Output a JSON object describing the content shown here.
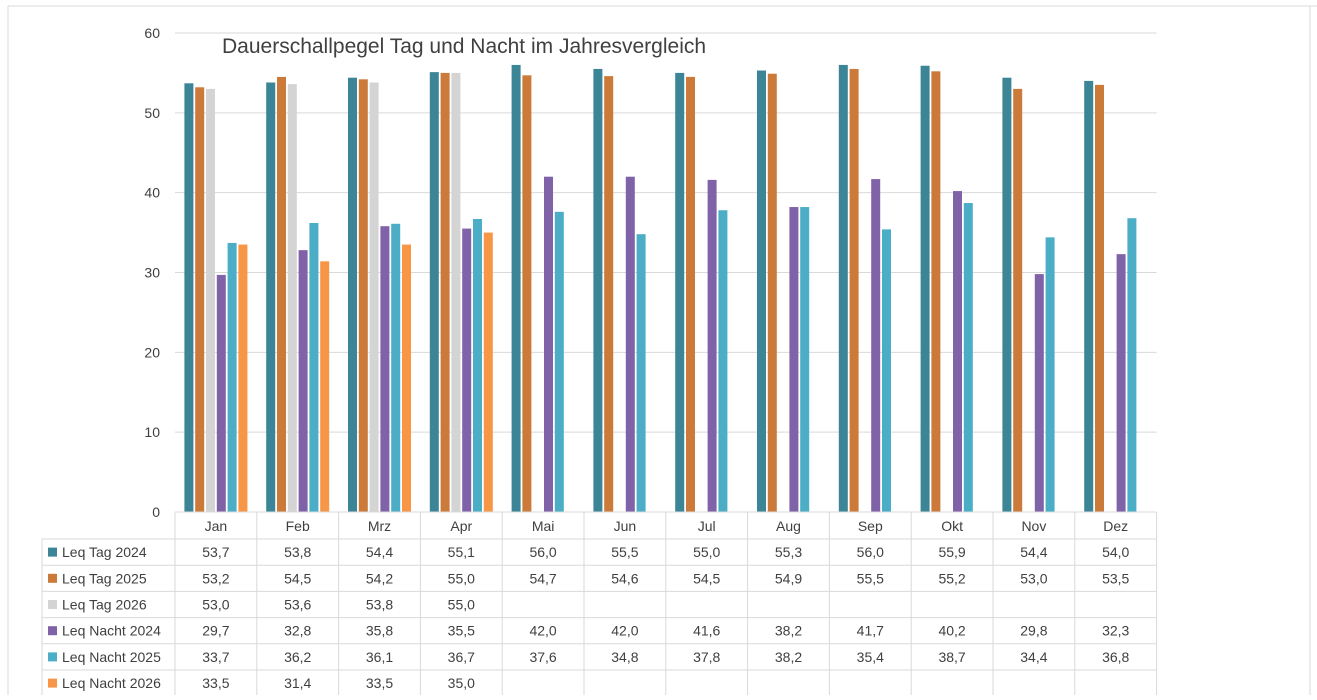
{
  "chart_data": {
    "type": "bar",
    "title": "Dauerschallpegel Tag und Nacht im Jahresvergleich",
    "xlabel": "",
    "ylabel": "",
    "ylim": [
      0,
      60
    ],
    "y_ticks": [
      "0",
      "10",
      "20",
      "30",
      "40",
      "50",
      "60"
    ],
    "grid": true,
    "legend": "data-table-rows",
    "categories": [
      "Jan",
      "Feb",
      "Mrz",
      "Apr",
      "Mai",
      "Jun",
      "Jul",
      "Aug",
      "Sep",
      "Okt",
      "Nov",
      "Dez"
    ],
    "series": [
      {
        "name": "Leq Tag 2024",
        "color": "#3b8597",
        "values": [
          53.7,
          53.8,
          54.4,
          55.1,
          56.0,
          55.5,
          55.0,
          55.3,
          56.0,
          55.9,
          54.4,
          54.0
        ],
        "labels": [
          "53,7",
          "53,8",
          "54,4",
          "55,1",
          "56,0",
          "55,5",
          "55,0",
          "55,3",
          "56,0",
          "55,9",
          "54,4",
          "54,0"
        ]
      },
      {
        "name": "Leq Tag 2025",
        "color": "#cc7a3a",
        "values": [
          53.2,
          54.5,
          54.2,
          55.0,
          54.7,
          54.6,
          54.5,
          54.9,
          55.5,
          55.2,
          53.0,
          53.5
        ],
        "labels": [
          "53,2",
          "54,5",
          "54,2",
          "55,0",
          "54,7",
          "54,6",
          "54,5",
          "54,9",
          "55,5",
          "55,2",
          "53,0",
          "53,5"
        ]
      },
      {
        "name": "Leq Tag 2026",
        "color": "#d4d4d4",
        "values": [
          53.0,
          53.6,
          53.8,
          55.0,
          null,
          null,
          null,
          null,
          null,
          null,
          null,
          null
        ],
        "labels": [
          "53,0",
          "53,6",
          "53,8",
          "55,0",
          "",
          "",
          "",
          "",
          "",
          "",
          "",
          ""
        ]
      },
      {
        "name": "Leq Nacht 2024",
        "color": "#8062a8",
        "values": [
          29.7,
          32.8,
          35.8,
          35.5,
          42.0,
          42.0,
          41.6,
          38.2,
          41.7,
          40.2,
          29.8,
          32.3
        ],
        "labels": [
          "29,7",
          "32,8",
          "35,8",
          "35,5",
          "42,0",
          "42,0",
          "41,6",
          "38,2",
          "41,7",
          "40,2",
          "29,8",
          "32,3"
        ]
      },
      {
        "name": "Leq Nacht 2025",
        "color": "#4badc6",
        "values": [
          33.7,
          36.2,
          36.1,
          36.7,
          37.6,
          34.8,
          37.8,
          38.2,
          35.4,
          38.7,
          34.4,
          36.8
        ],
        "labels": [
          "33,7",
          "36,2",
          "36,1",
          "36,7",
          "37,6",
          "34,8",
          "37,8",
          "38,2",
          "35,4",
          "38,7",
          "34,4",
          "36,8"
        ]
      },
      {
        "name": "Leq Nacht 2026",
        "color": "#f79646",
        "values": [
          33.5,
          31.4,
          33.5,
          35.0,
          null,
          null,
          null,
          null,
          null,
          null,
          null,
          null
        ],
        "labels": [
          "33,5",
          "31,4",
          "33,5",
          "35,0",
          "",
          "",
          "",
          "",
          "",
          "",
          "",
          ""
        ]
      }
    ]
  }
}
